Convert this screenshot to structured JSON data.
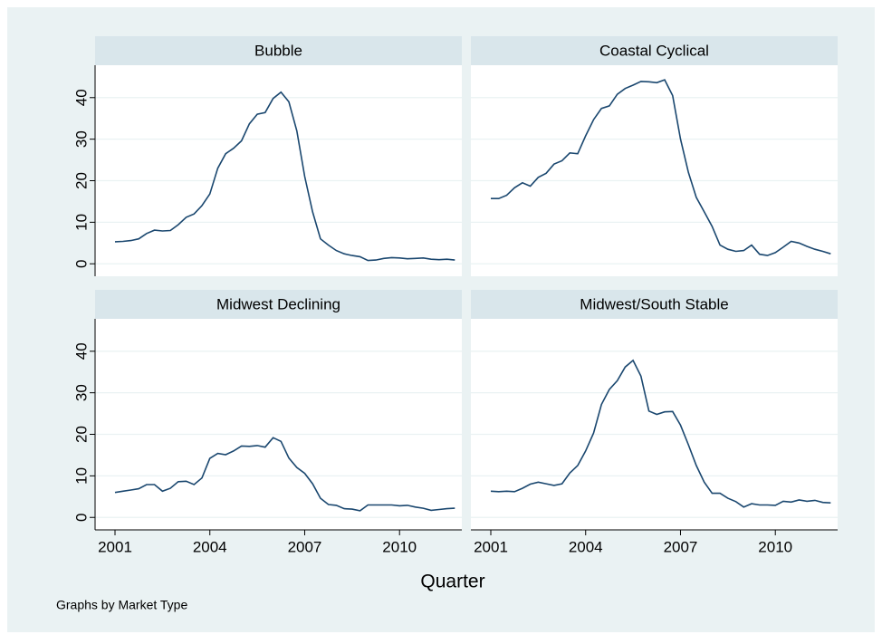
{
  "chart_data": [
    {
      "type": "line",
      "title": "Bubble",
      "color": "#1a476f",
      "x": [
        2001,
        2001.25,
        2001.5,
        2001.75,
        2002,
        2002.25,
        2002.5,
        2002.75,
        2003,
        2003.25,
        2003.5,
        2003.75,
        2004,
        2004.25,
        2004.5,
        2004.75,
        2005,
        2005.25,
        2005.5,
        2005.75,
        2006,
        2006.25,
        2006.5,
        2006.75,
        2007,
        2007.25,
        2007.5,
        2007.75,
        2008,
        2008.25,
        2008.5,
        2008.75,
        2009,
        2009.25,
        2009.5,
        2009.75,
        2010,
        2010.25,
        2010.5,
        2010.75,
        2011,
        2011.25,
        2011.5,
        2011.75
      ],
      "values": [
        5.3,
        5.4,
        5.6,
        6,
        7.3,
        8.1,
        7.9,
        8,
        9.4,
        11.2,
        12,
        14,
        16.8,
        23,
        26.5,
        27.8,
        29.6,
        33.7,
        36,
        36.4,
        39.8,
        41.3,
        39,
        32,
        21,
        12.5,
        6,
        4.5,
        3.2,
        2.4,
        2,
        1.7,
        0.8,
        0.9,
        1.3,
        1.5,
        1.4,
        1.2,
        1.3,
        1.4,
        1.1,
        1,
        1.1,
        0.9
      ],
      "xlim": [
        2000.37,
        2011.97
      ],
      "ylim": [
        -3,
        47.8
      ],
      "yticks": [
        0,
        10,
        20,
        30,
        40
      ],
      "grid": true
    },
    {
      "type": "line",
      "title": "Coastal Cyclical",
      "color": "#1a476f",
      "x": [
        2001,
        2001.25,
        2001.5,
        2001.75,
        2002,
        2002.25,
        2002.5,
        2002.75,
        2003,
        2003.25,
        2003.5,
        2003.75,
        2004,
        2004.25,
        2004.5,
        2004.75,
        2005,
        2005.25,
        2005.5,
        2005.75,
        2006,
        2006.25,
        2006.5,
        2006.75,
        2007,
        2007.25,
        2007.5,
        2007.75,
        2008,
        2008.25,
        2008.5,
        2008.75,
        2009,
        2009.25,
        2009.5,
        2009.75,
        2010,
        2010.25,
        2010.5,
        2010.75,
        2011,
        2011.25,
        2011.5,
        2011.75
      ],
      "values": [
        15.7,
        15.7,
        16.5,
        18.3,
        19.5,
        18.7,
        20.8,
        21.8,
        24,
        24.8,
        26.7,
        26.5,
        30.8,
        34.7,
        37.4,
        38,
        40.8,
        42.2,
        43,
        43.9,
        43.8,
        43.6,
        44.3,
        40.5,
        30,
        22,
        16,
        12.5,
        9,
        4.5,
        3.5,
        3,
        3.2,
        4.5,
        2.3,
        2,
        2.7,
        4,
        5.4,
        5,
        4.2,
        3.5,
        3,
        2.4
      ],
      "xlim": [
        2000.37,
        2011.97
      ],
      "ylim": [
        -3,
        47.8
      ],
      "yticks": [
        0,
        10,
        20,
        30,
        40
      ],
      "grid": true
    },
    {
      "type": "line",
      "title": "Midwest Declining",
      "color": "#1a476f",
      "x": [
        2001,
        2001.25,
        2001.5,
        2001.75,
        2002,
        2002.25,
        2002.5,
        2002.75,
        2003,
        2003.25,
        2003.5,
        2003.75,
        2004,
        2004.25,
        2004.5,
        2004.75,
        2005,
        2005.25,
        2005.5,
        2005.75,
        2006,
        2006.25,
        2006.5,
        2006.75,
        2007,
        2007.25,
        2007.5,
        2007.75,
        2008,
        2008.25,
        2008.5,
        2008.75,
        2009,
        2009.25,
        2009.5,
        2009.75,
        2010,
        2010.25,
        2010.5,
        2010.75,
        2011,
        2011.25,
        2011.5,
        2011.75
      ],
      "values": [
        6,
        6.3,
        6.6,
        6.9,
        7.9,
        7.9,
        6.3,
        7,
        8.6,
        8.7,
        7.9,
        9.5,
        14.2,
        15.4,
        15.1,
        16,
        17.2,
        17.1,
        17.3,
        16.9,
        19.2,
        18.3,
        14.3,
        12,
        10.6,
        8.1,
        4.6,
        3.1,
        2.9,
        2.1,
        2,
        1.6,
        3,
        3,
        3,
        3,
        2.8,
        2.9,
        2.5,
        2.2,
        1.7,
        1.9,
        2.1,
        2.2
      ],
      "xlim": [
        2000.37,
        2011.97
      ],
      "ylim": [
        -3,
        47.8
      ],
      "xticks": [
        2001,
        2004,
        2007,
        2010
      ],
      "yticks": [
        0,
        10,
        20,
        30,
        40
      ],
      "grid": true
    },
    {
      "type": "line",
      "title": "Midwest/South Stable",
      "color": "#1a476f",
      "x": [
        2001,
        2001.25,
        2001.5,
        2001.75,
        2002,
        2002.25,
        2002.5,
        2002.75,
        2003,
        2003.25,
        2003.5,
        2003.75,
        2004,
        2004.25,
        2004.5,
        2004.75,
        2005,
        2005.25,
        2005.5,
        2005.75,
        2006,
        2006.25,
        2006.5,
        2006.75,
        2007,
        2007.25,
        2007.5,
        2007.75,
        2008,
        2008.25,
        2008.5,
        2008.75,
        2009,
        2009.25,
        2009.5,
        2009.75,
        2010,
        2010.25,
        2010.5,
        2010.75,
        2011,
        2011.25,
        2011.5,
        2011.75
      ],
      "values": [
        6.3,
        6.2,
        6.3,
        6.2,
        7,
        8,
        8.5,
        8.1,
        7.7,
        8.1,
        10.7,
        12.5,
        16,
        20.3,
        27.2,
        30.8,
        32.9,
        36.2,
        37.8,
        34,
        25.6,
        24.8,
        25.4,
        25.5,
        22.2,
        17.5,
        12.5,
        8.5,
        5.8,
        5.8,
        4.6,
        3.8,
        2.5,
        3.3,
        3,
        3,
        2.9,
        3.9,
        3.7,
        4.2,
        3.9,
        4.1,
        3.6,
        3.5
      ],
      "xlim": [
        2000.37,
        2011.97
      ],
      "ylim": [
        -3,
        47.8
      ],
      "xticks": [
        2001,
        2004,
        2007,
        2010
      ],
      "yticks": [
        0,
        10,
        20,
        30,
        40
      ],
      "grid": true
    }
  ],
  "xlabel": "Quarter",
  "note": "Graphs by Market Type"
}
